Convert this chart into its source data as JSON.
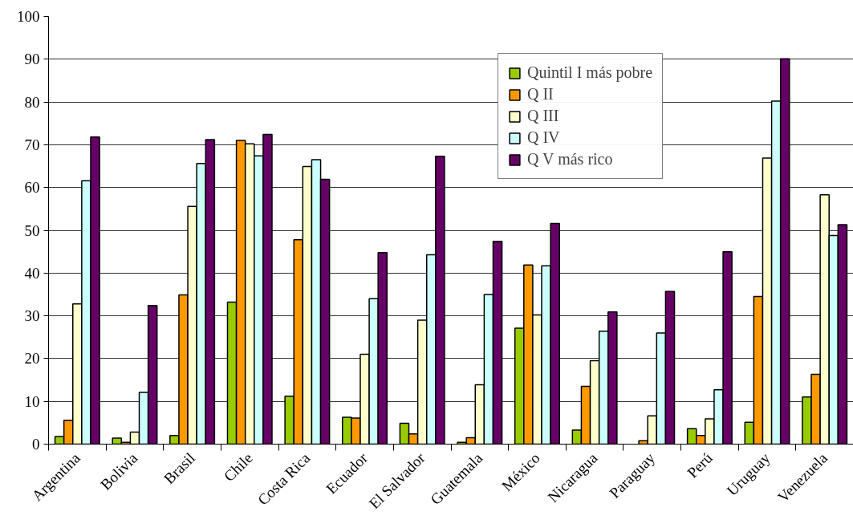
{
  "chart_data": {
    "type": "bar",
    "categories": [
      "Argentina",
      "Bolivia",
      "Brasil",
      "Chile",
      "Costa Rica",
      "Ecuador",
      "El Salvador",
      "Guatemala",
      "México",
      "Nicaragua",
      "Paraguay",
      "Perú",
      "Uruguay",
      "Venezuela"
    ],
    "series": [
      {
        "name": "Quintil I más pobre",
        "color": "#99cc00",
        "values": [
          1.8,
          1.4,
          2.0,
          33.2,
          11.2,
          6.3,
          4.9,
          0.4,
          27.1,
          3.3,
          0,
          3.6,
          5.1,
          11.0
        ]
      },
      {
        "name": "Q II",
        "color": "#ff9900",
        "values": [
          5.6,
          0.4,
          34.9,
          71.0,
          47.8,
          6.1,
          2.4,
          1.5,
          41.9,
          13.5,
          0.8,
          2.0,
          34.5,
          16.3
        ]
      },
      {
        "name": "Q III",
        "color": "#ffffcc",
        "values": [
          32.8,
          2.8,
          55.6,
          70.2,
          64.9,
          21.0,
          29.0,
          13.9,
          30.2,
          19.5,
          6.6,
          5.9,
          66.9,
          58.3
        ]
      },
      {
        "name": "Q IV",
        "color": "#ccffff",
        "values": [
          61.6,
          12.1,
          65.6,
          67.4,
          66.5,
          34.0,
          44.3,
          35.0,
          41.7,
          26.4,
          26.0,
          12.7,
          80.2,
          48.8
        ]
      },
      {
        "name": "Q V más rico",
        "color": "#660066",
        "values": [
          71.8,
          32.4,
          71.2,
          72.4,
          61.9,
          44.8,
          67.3,
          47.4,
          51.6,
          30.9,
          35.7,
          45.0,
          90.1,
          51.3
        ]
      }
    ],
    "ylim": [
      0,
      100
    ],
    "yticks": [
      0,
      10,
      20,
      30,
      40,
      50,
      60,
      70,
      80,
      90,
      100
    ],
    "grid": "y",
    "legend": "top right"
  }
}
